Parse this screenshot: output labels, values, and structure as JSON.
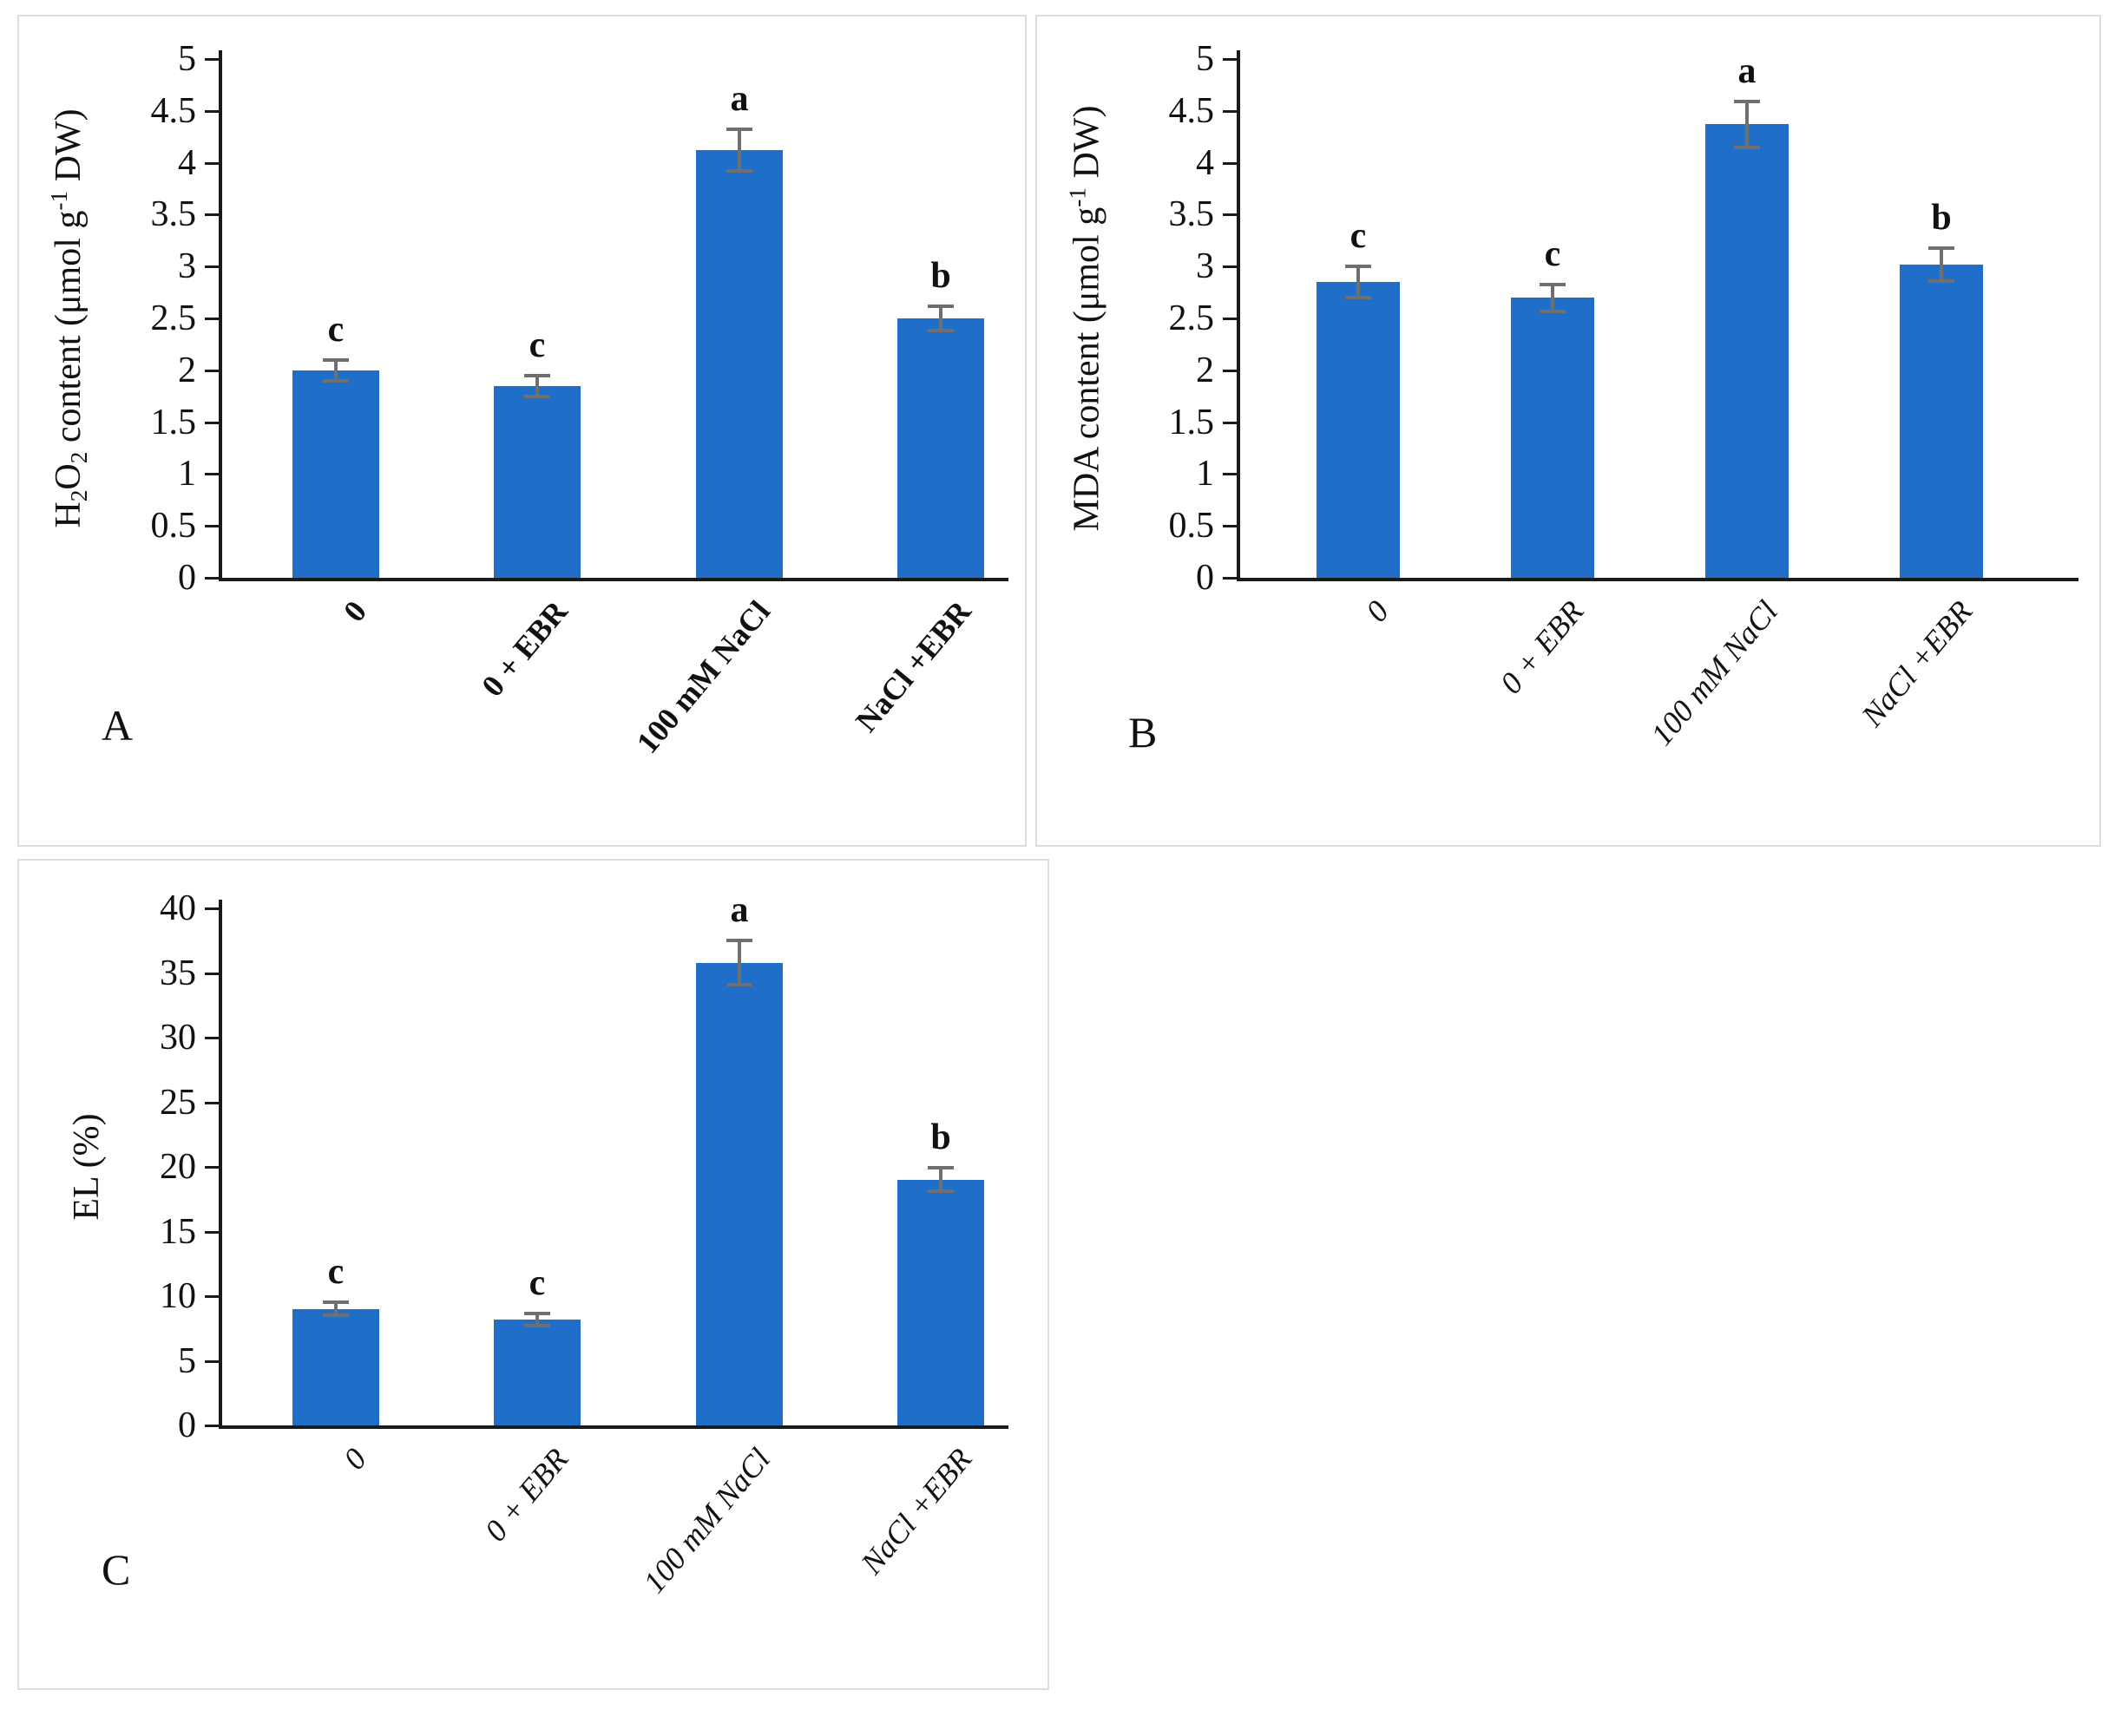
{
  "figure": {
    "bar_color": "#1F6FC8",
    "error_bar_color": "#6f6f6f",
    "axis_color": "#1a1a1a",
    "panel_border_color": "#dcdcdc"
  },
  "chart_data": [
    {
      "type": "bar",
      "panel_letter": "A",
      "title": "",
      "xlabel": "",
      "ylabel": "H2O2 content (umol g-1 DW)",
      "ylabel_parts": [
        {
          "text": "H"
        },
        {
          "text": "2",
          "style": "sub"
        },
        {
          "text": "O"
        },
        {
          "text": "2",
          "style": "sub"
        },
        {
          "text": " content (μmol g"
        },
        {
          "text": "-1",
          "style": "sup"
        },
        {
          "text": " DW)"
        }
      ],
      "categories": [
        "0",
        "0 + EBR",
        "100 mM NaCl",
        "NaCl +EBR"
      ],
      "values": [
        2.0,
        1.85,
        4.12,
        2.5
      ],
      "errors": [
        0.1,
        0.1,
        0.2,
        0.12
      ],
      "sig_letters": [
        "c",
        "c",
        "a",
        "b"
      ],
      "ylim": [
        0,
        5
      ],
      "ytick_step": 0.5,
      "grid": false,
      "legend": "none",
      "xlabel_style": "bold"
    },
    {
      "type": "bar",
      "panel_letter": "B",
      "title": "",
      "xlabel": "",
      "ylabel": "MDA content (umol g-1 DW)",
      "ylabel_parts": [
        {
          "text": "MDA content (μmol g"
        },
        {
          "text": "-1",
          "style": "sup"
        },
        {
          "text": " DW)"
        }
      ],
      "categories": [
        "0",
        "0 + EBR",
        "100 mM NaCl",
        "NaCl +EBR"
      ],
      "values": [
        2.85,
        2.7,
        4.37,
        3.02
      ],
      "errors": [
        0.15,
        0.13,
        0.22,
        0.16
      ],
      "sig_letters": [
        "c",
        "c",
        "a",
        "b"
      ],
      "ylim": [
        0,
        5
      ],
      "ytick_step": 0.5,
      "grid": false,
      "legend": "none",
      "xlabel_style": "italic"
    },
    {
      "type": "bar",
      "panel_letter": "C",
      "title": "",
      "xlabel": "",
      "ylabel": "EL (%)",
      "ylabel_parts": [
        {
          "text": "EL (%)"
        }
      ],
      "categories": [
        "0",
        "0 + EBR",
        "100 mM NaCl",
        "NaCl +EBR"
      ],
      "values": [
        9.0,
        8.2,
        35.8,
        19.0
      ],
      "errors": [
        0.5,
        0.45,
        1.7,
        0.9
      ],
      "sig_letters": [
        "c",
        "c",
        "a",
        "b"
      ],
      "ylim": [
        0,
        40
      ],
      "ytick_step": 5,
      "grid": false,
      "legend": "none",
      "xlabel_style": "italic"
    }
  ]
}
